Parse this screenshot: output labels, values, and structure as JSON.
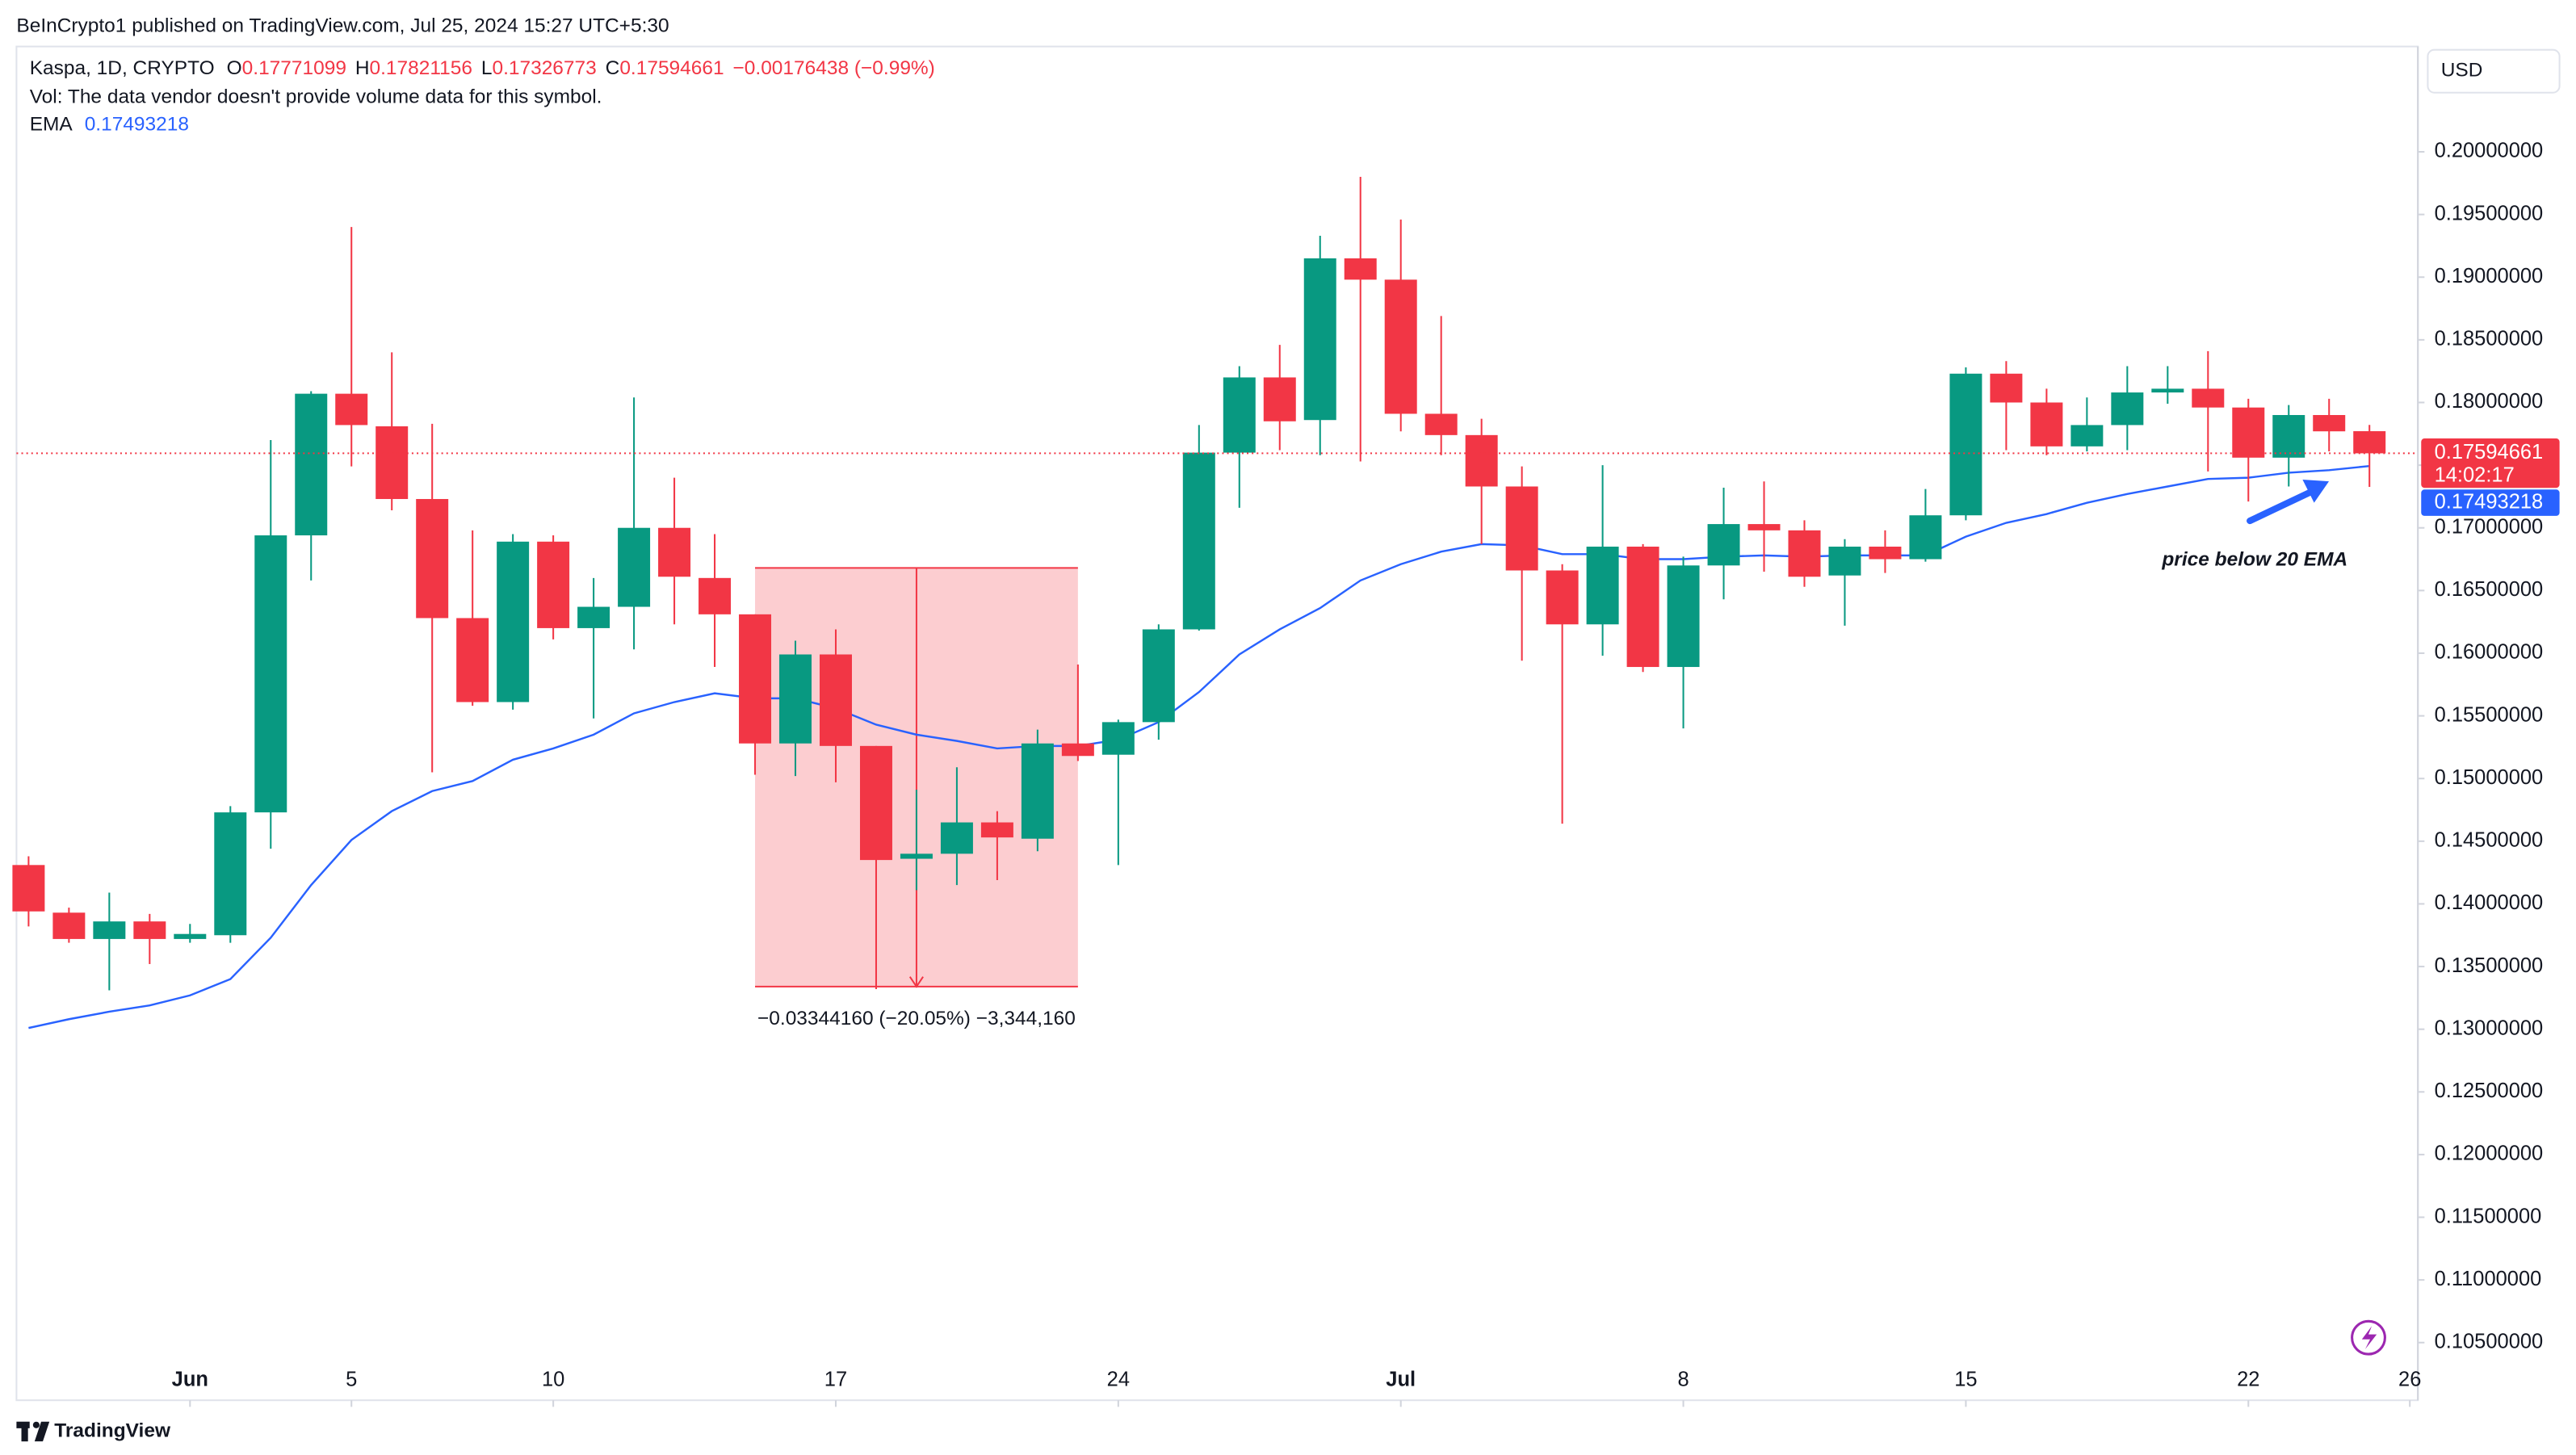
{
  "header": "BeInCrypto1 published on TradingView.com, Jul 25, 2024 15:27 UTC+5:30",
  "chart_data": {
    "type": "candlestick",
    "legend": {
      "symbol": "Kaspa, 1D, CRYPTO",
      "o": "O",
      "h": "H",
      "l": "L",
      "c": "C",
      "change": "−0.00176438 (−0.99%)",
      "vol": "Vol: The data vendor doesn't provide volume data for this symbol."
    },
    "currency": "USD",
    "countdown": "14:02:17",
    "up_color": "#089981",
    "down_color": "#f23645",
    "open": [
      0.1431,
      0.1393,
      0.1372,
      0.1386,
      0.1372,
      0.1375,
      0.1473,
      0.1694,
      0.1807,
      0.1781,
      0.1723,
      0.1628,
      0.1561,
      0.1689,
      0.162,
      0.1637,
      0.17,
      0.166,
      0.1631,
      0.1528,
      0.1599,
      0.1526,
      0.1436,
      0.144,
      0.1465,
      0.1452,
      0.1528,
      0.1519,
      0.1545,
      0.1619,
      0.176,
      0.182,
      0.1786,
      0.1915,
      0.1898,
      0.1791,
      0.1774,
      0.1733,
      0.1666,
      0.1623,
      0.1685,
      0.1589,
      0.167,
      0.1703,
      0.1698,
      0.1662,
      0.1685,
      0.1675,
      0.171,
      0.1823,
      0.18,
      0.1765,
      0.1782,
      0.1808,
      0.1811,
      0.1796,
      0.1756,
      0.179,
      0.17771099
    ],
    "high": [
      0.1438,
      0.1397,
      0.1409,
      0.1392,
      0.1384,
      0.1478,
      0.177,
      0.1809,
      0.194,
      0.184,
      0.1783,
      0.1698,
      0.1695,
      0.1694,
      0.166,
      0.1804,
      0.174,
      0.1695,
      0.1631,
      0.161,
      0.1619,
      0.1526,
      0.1491,
      0.1509,
      0.1474,
      0.1539,
      0.1591,
      0.1547,
      0.1623,
      0.1782,
      0.1829,
      0.1846,
      0.1933,
      0.198,
      0.1946,
      0.1869,
      0.1787,
      0.1749,
      0.1671,
      0.175,
      0.1687,
      0.1677,
      0.1732,
      0.1737,
      0.1706,
      0.1691,
      0.1698,
      0.1731,
      0.1828,
      0.1833,
      0.1811,
      0.1804,
      0.1829,
      0.1829,
      0.1841,
      0.1803,
      0.1798,
      0.1803,
      0.17821156
    ],
    "low": [
      0.1382,
      0.1369,
      0.1331,
      0.1352,
      0.1369,
      0.1369,
      0.1444,
      0.1658,
      0.1749,
      0.1714,
      0.1505,
      0.1558,
      0.1555,
      0.1611,
      0.1548,
      0.1603,
      0.1623,
      0.1589,
      0.1503,
      0.1502,
      0.1497,
      0.1332,
      0.1411,
      0.1415,
      0.1419,
      0.1442,
      0.1514,
      0.1431,
      0.1531,
      0.1618,
      0.1716,
      0.1762,
      0.1758,
      0.1753,
      0.1777,
      0.1758,
      0.1687,
      0.1594,
      0.1464,
      0.1598,
      0.1585,
      0.154,
      0.1643,
      0.1665,
      0.1653,
      0.1622,
      0.1664,
      0.1673,
      0.1706,
      0.1762,
      0.1758,
      0.1761,
      0.1762,
      0.1799,
      0.1745,
      0.1721,
      0.1733,
      0.1761,
      0.17326773
    ],
    "close": [
      0.1394,
      0.1372,
      0.1386,
      0.1372,
      0.1376,
      0.1473,
      0.1694,
      0.1807,
      0.1782,
      0.1723,
      0.1628,
      0.1561,
      0.1689,
      0.162,
      0.1637,
      0.17,
      0.1661,
      0.1631,
      0.1528,
      0.1599,
      0.1526,
      0.1435,
      0.144,
      0.1465,
      0.1453,
      0.1528,
      0.1518,
      0.1545,
      0.1619,
      0.176,
      0.182,
      0.1785,
      0.1915,
      0.1898,
      0.1791,
      0.1774,
      0.1733,
      0.1666,
      0.1623,
      0.1685,
      0.1589,
      0.167,
      0.1703,
      0.1698,
      0.1661,
      0.1685,
      0.1675,
      0.171,
      0.1823,
      0.18,
      0.1765,
      0.1782,
      0.1808,
      0.1811,
      0.1796,
      0.1756,
      0.179,
      0.1777,
      0.17594661
    ],
    "series": [
      {
        "name": "EMA",
        "color": "#2962ff",
        "values": [
          0.1301,
          0.1308,
          0.1314,
          0.1319,
          0.1327,
          0.134,
          0.1373,
          0.1415,
          0.1451,
          0.1474,
          0.149,
          0.1498,
          0.1515,
          0.1524,
          0.1535,
          0.1552,
          0.1561,
          0.1568,
          0.1564,
          0.1564,
          0.1556,
          0.1543,
          0.1535,
          0.153,
          0.1524,
          0.1526,
          0.1526,
          0.1531,
          0.1545,
          0.1569,
          0.1599,
          0.1619,
          0.1636,
          0.1658,
          0.1671,
          0.1681,
          0.1687,
          0.1686,
          0.1679,
          0.1679,
          0.1675,
          0.1675,
          0.1677,
          0.1678,
          0.1677,
          0.1678,
          0.1678,
          0.1678,
          0.1693,
          0.1704,
          0.1711,
          0.172,
          0.1727,
          0.1733,
          0.1739,
          0.174,
          0.1744,
          0.1746,
          0.17493218
        ]
      }
    ],
    "xlim": [
      -0.3,
      59.2
    ],
    "xticks": [
      {
        "value": 4,
        "label": "Jun"
      },
      {
        "value": 8,
        "label": "5"
      },
      {
        "value": 13,
        "label": "10"
      },
      {
        "value": 20,
        "label": "17"
      },
      {
        "value": 27,
        "label": "24"
      },
      {
        "value": 34,
        "label": "Jul"
      },
      {
        "value": 41,
        "label": "8"
      },
      {
        "value": 48,
        "label": "15"
      },
      {
        "value": 55,
        "label": "22"
      },
      {
        "value": 59,
        "label": "26"
      }
    ],
    "ylim": [
      0.1004,
      0.2084
    ],
    "yticks": [
      {
        "value": 0.105,
        "label": "0.10500000"
      },
      {
        "value": 0.11,
        "label": "0.11000000"
      },
      {
        "value": 0.115,
        "label": "0.11500000"
      },
      {
        "value": 0.12,
        "label": "0.12000000"
      },
      {
        "value": 0.125,
        "label": "0.12500000"
      },
      {
        "value": 0.13,
        "label": "0.13000000"
      },
      {
        "value": 0.135,
        "label": "0.13500000"
      },
      {
        "value": 0.14,
        "label": "0.14000000"
      },
      {
        "value": 0.145,
        "label": "0.14500000"
      },
      {
        "value": 0.15,
        "label": "0.15000000"
      },
      {
        "value": 0.155,
        "label": "0.15500000"
      },
      {
        "value": 0.16,
        "label": "0.16000000"
      },
      {
        "value": 0.165,
        "label": "0.16500000"
      },
      {
        "value": 0.17,
        "label": "0.17000000"
      },
      {
        "value": 0.175,
        "label": "0.17500000"
      },
      {
        "value": 0.18,
        "label": "0.18000000"
      },
      {
        "value": 0.185,
        "label": "0.18500000"
      },
      {
        "value": 0.19,
        "label": "0.19000000"
      },
      {
        "value": 0.195,
        "label": "0.19500000"
      },
      {
        "value": 0.2,
        "label": "0.20000000"
      }
    ],
    "grid": false,
    "measure": {
      "from": 18,
      "to": 26,
      "high": 0.1668,
      "low": 0.1334,
      "label": "−0.03344160 (−20.05%) −3,344,160"
    },
    "annotation": "price below 20 EMA"
  },
  "footer": "TradingView"
}
